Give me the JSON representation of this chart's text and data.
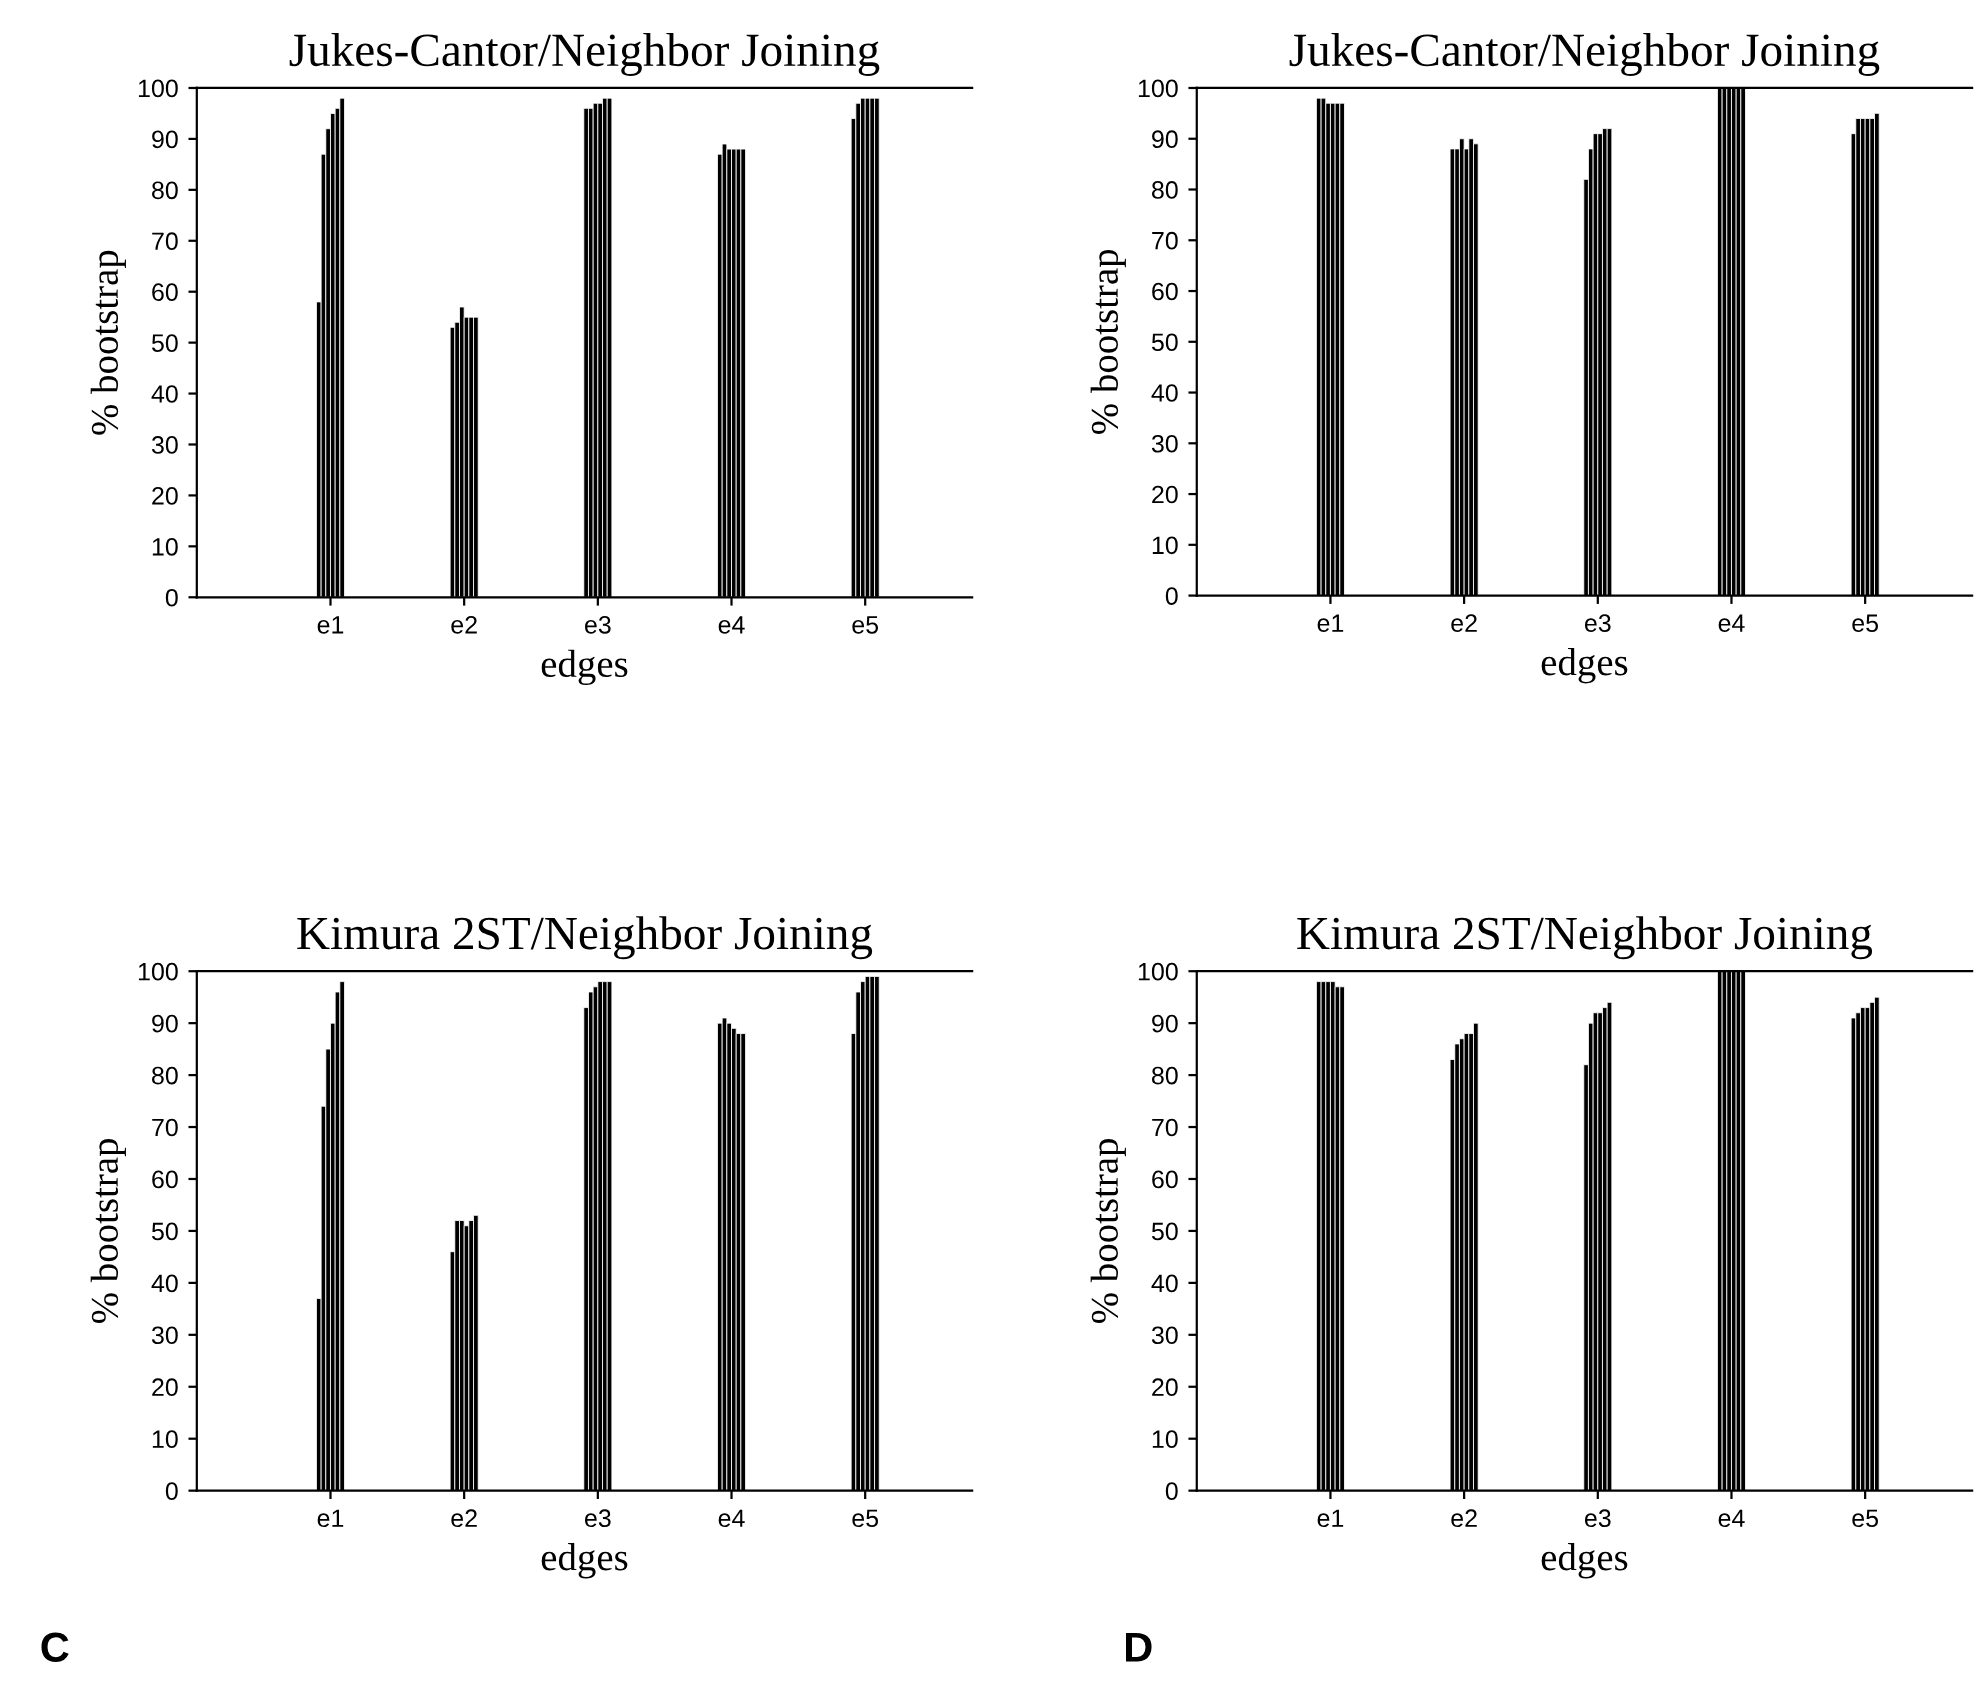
{
  "chart_data": [
    {
      "type": "bar",
      "title": "Jukes-Cantor/Neighbor Joining",
      "xlabel": "edges",
      "ylabel": "% bootstrap",
      "categories": [
        "e1",
        "e2",
        "e3",
        "e4",
        "e5"
      ],
      "ylim": [
        0,
        100
      ],
      "yticks": [
        0,
        10,
        20,
        30,
        40,
        50,
        60,
        70,
        80,
        90,
        100
      ],
      "grid": false,
      "legend": false,
      "series": [
        {
          "color": "#000000",
          "values": [
            58,
            53,
            96,
            87,
            94
          ]
        },
        {
          "color": "#000000",
          "values": [
            87,
            54,
            96,
            89,
            97
          ]
        },
        {
          "color": "#000000",
          "values": [
            92,
            57,
            97,
            88,
            98
          ]
        },
        {
          "color": "#000000",
          "values": [
            95,
            55,
            97,
            88,
            98
          ]
        },
        {
          "color": "#000000",
          "values": [
            96,
            55,
            98,
            88,
            98
          ]
        },
        {
          "color": "#000000",
          "values": [
            98,
            55,
            98,
            88,
            98
          ]
        }
      ]
    },
    {
      "type": "bar",
      "title": "Jukes-Cantor/Neighbor Joining",
      "xlabel": "edges",
      "ylabel": "% bootstrap",
      "categories": [
        "e1",
        "e2",
        "e3",
        "e4",
        "e5"
      ],
      "ylim": [
        0,
        100
      ],
      "yticks": [
        0,
        10,
        20,
        30,
        40,
        50,
        60,
        70,
        80,
        90,
        100
      ],
      "grid": false,
      "legend": false,
      "series": [
        {
          "color": "#000000",
          "values": [
            98,
            88,
            82,
            100,
            91
          ]
        },
        {
          "color": "#000000",
          "values": [
            98,
            88,
            88,
            100,
            94
          ]
        },
        {
          "color": "#000000",
          "values": [
            97,
            90,
            91,
            100,
            94
          ]
        },
        {
          "color": "#000000",
          "values": [
            97,
            88,
            91,
            100,
            94
          ]
        },
        {
          "color": "#000000",
          "values": [
            97,
            90,
            92,
            100,
            94
          ]
        },
        {
          "color": "#000000",
          "values": [
            97,
            89,
            92,
            100,
            95
          ]
        }
      ]
    },
    {
      "type": "bar",
      "title": "Kimura 2ST/Neighbor Joining",
      "xlabel": "edges",
      "ylabel": "% bootstrap",
      "annotations": [
        "C"
      ],
      "categories": [
        "e1",
        "e2",
        "e3",
        "e4",
        "e5"
      ],
      "ylim": [
        0,
        100
      ],
      "yticks": [
        0,
        10,
        20,
        30,
        40,
        50,
        60,
        70,
        80,
        90,
        100
      ],
      "grid": false,
      "legend": false,
      "series": [
        {
          "color": "#000000",
          "values": [
            37,
            46,
            93,
            90,
            88
          ]
        },
        {
          "color": "#000000",
          "values": [
            74,
            52,
            96,
            91,
            96
          ]
        },
        {
          "color": "#000000",
          "values": [
            85,
            52,
            97,
            90,
            98
          ]
        },
        {
          "color": "#000000",
          "values": [
            90,
            51,
            98,
            89,
            99
          ]
        },
        {
          "color": "#000000",
          "values": [
            96,
            52,
            98,
            88,
            99
          ]
        },
        {
          "color": "#000000",
          "values": [
            98,
            53,
            98,
            88,
            99
          ]
        }
      ]
    },
    {
      "type": "bar",
      "title": "Kimura 2ST/Neighbor Joining",
      "xlabel": "edges",
      "ylabel": "% bootstrap",
      "annotations": [
        "D"
      ],
      "categories": [
        "e1",
        "e2",
        "e3",
        "e4",
        "e5"
      ],
      "ylim": [
        0,
        100
      ],
      "yticks": [
        0,
        10,
        20,
        30,
        40,
        50,
        60,
        70,
        80,
        90,
        100
      ],
      "grid": false,
      "legend": false,
      "series": [
        {
          "color": "#000000",
          "values": [
            98,
            83,
            82,
            100,
            91
          ]
        },
        {
          "color": "#000000",
          "values": [
            98,
            86,
            90,
            100,
            92
          ]
        },
        {
          "color": "#000000",
          "values": [
            98,
            87,
            92,
            100,
            93
          ]
        },
        {
          "color": "#000000",
          "values": [
            98,
            88,
            92,
            100,
            93
          ]
        },
        {
          "color": "#000000",
          "values": [
            97,
            88,
            93,
            100,
            94
          ]
        },
        {
          "color": "#000000",
          "values": [
            97,
            90,
            94,
            100,
            95
          ]
        }
      ]
    }
  ]
}
